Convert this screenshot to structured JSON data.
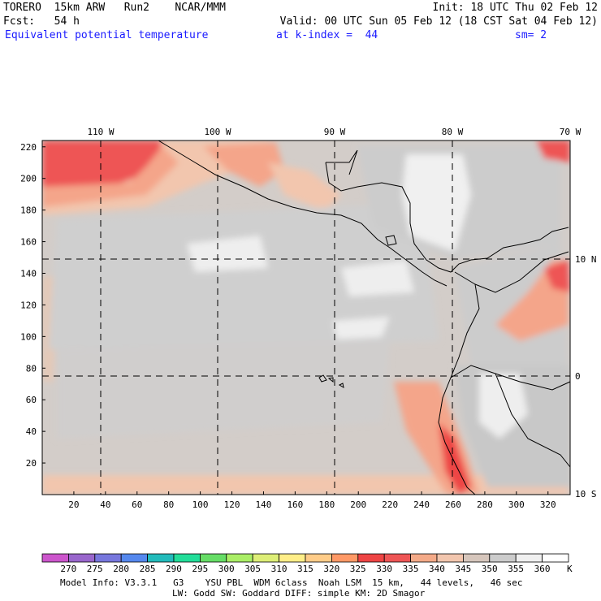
{
  "header": {
    "line1_left": "TORERO  15km ARW   Run2    NCAR/MMM",
    "line1_right": "Init: 18 UTC Thu 02 Feb 12",
    "line2_left": "Fcst:   54 h",
    "line2_right": "Valid: 00 UTC Sun 05 Feb 12 (18 CST Sat 04 Feb 12)",
    "field_name": "Equivalent potential temperature",
    "level": "at k-index =  44",
    "smoothing": "sm= 2"
  },
  "map": {
    "lon_labels": [
      "110 W",
      "100 W",
      "90 W",
      "80 W",
      "70 W"
    ],
    "lat_labels": [
      "10 N",
      "0",
      "10 S"
    ],
    "y_ticks": [
      "220",
      "200",
      "180",
      "160",
      "140",
      "120",
      "100",
      "80",
      "60",
      "40",
      "20"
    ],
    "x_ticks": [
      "20",
      "40",
      "60",
      "80",
      "100",
      "120",
      "140",
      "160",
      "180",
      "200",
      "220",
      "240",
      "260",
      "280",
      "300",
      "320"
    ]
  },
  "colorbar": {
    "levels": [
      "270",
      "275",
      "280",
      "285",
      "290",
      "295",
      "300",
      "305",
      "310",
      "315",
      "320",
      "325",
      "330",
      "335",
      "340",
      "345",
      "350",
      "355",
      "360"
    ],
    "unit": "K",
    "colors": [
      "#cc55cc",
      "#9966cc",
      "#7777dd",
      "#5588ee",
      "#22bbbb",
      "#22dd99",
      "#66dd66",
      "#aaee66",
      "#ddee77",
      "#ffee88",
      "#ffcc88",
      "#ff9966",
      "#ee4444",
      "#ee5555",
      "#f4aa88",
      "#f2c6ae",
      "#d6c6bc",
      "#cccccc",
      "#f0f0f0",
      "#ffffff"
    ]
  },
  "footer": {
    "line1": "Model Info: V3.3.1   G3    YSU PBL  WDM 6class  Noah LSM  15 km,   44 levels,   46 sec",
    "line2": "LW: Godd SW: Goddard DIFF: simple KM: 2D Smagor"
  }
}
